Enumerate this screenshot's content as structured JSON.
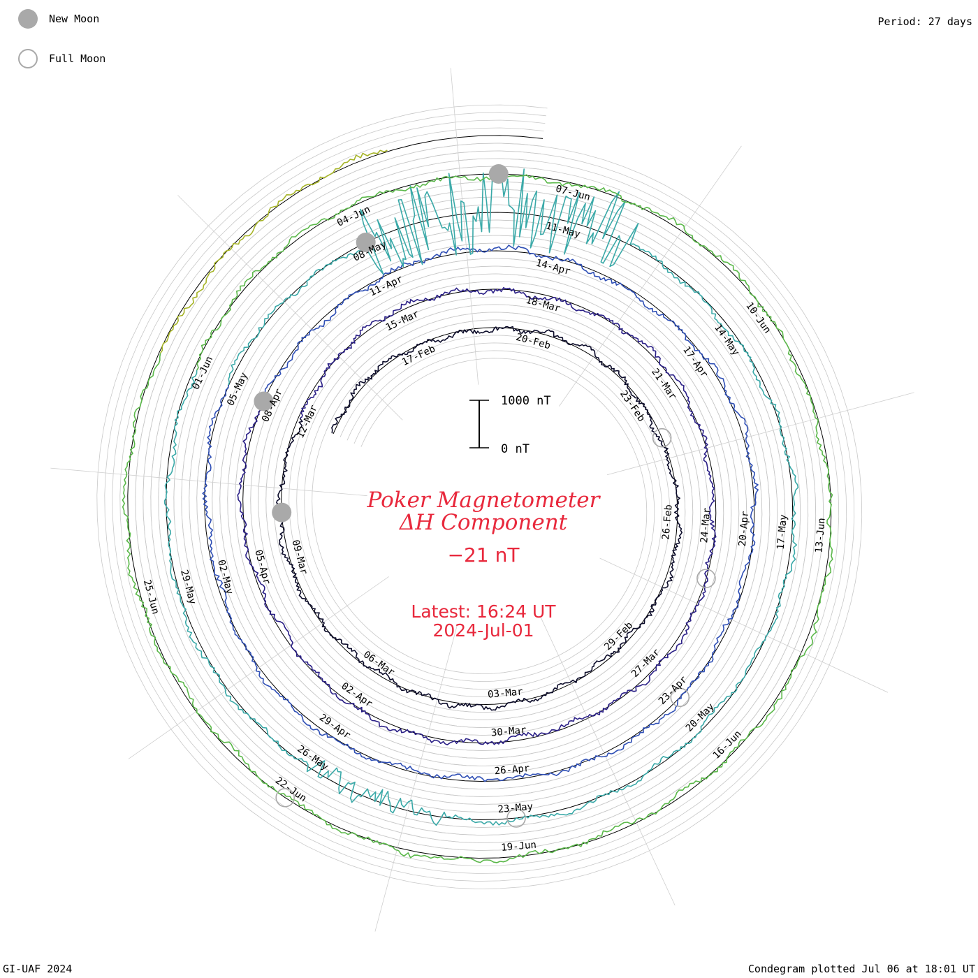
{
  "legend": {
    "new_moon_label": "New Moon",
    "full_moon_label": "Full Moon",
    "new_moon_color": "#a9a9a9",
    "full_moon_color": "#a9a9a9"
  },
  "header": {
    "period": "Period: 27 days"
  },
  "footer": {
    "credit": "GI-UAF 2024",
    "plotted": "Condegram plotted Jul 06 at 18:01 UT"
  },
  "center": {
    "title_line1": "Poker Magnetometer",
    "title_line2": "ΔH Component",
    "value": "−21 nT",
    "latest": "Latest: 16:24 UT",
    "date": "2024-Jul-01"
  },
  "scale_bar": {
    "top_label": "1000 nT",
    "bottom_label": "0 nT"
  },
  "chart_data": {
    "type": "line",
    "subtype": "condegram (spiral, polar)",
    "station": "Poker",
    "component": "ΔH",
    "period_days": 27,
    "scale_nT": [
      0,
      1000
    ],
    "start_date": "2024-02-14",
    "end_date": "2024-07-01",
    "series": [
      {
        "lap": 1,
        "color": "#0c0c2a"
      },
      {
        "lap": 2,
        "color": "#2a1f86"
      },
      {
        "lap": 3,
        "color": "#2f4fb5"
      },
      {
        "lap": 4,
        "color": "#3aa9a8"
      },
      {
        "lap": 5,
        "color": "#5bb84a"
      },
      {
        "lap": 6,
        "color": "#a6b428"
      },
      {
        "lap": 7,
        "color": "#b87e18"
      },
      {
        "lap": 8,
        "color": "#c23814"
      }
    ],
    "date_labels": [
      "17-Feb",
      "20-Feb",
      "23-Feb",
      "26-Feb",
      "29-Feb",
      "03-Mar",
      "06-Mar",
      "09-Mar",
      "12-Mar",
      "15-Mar",
      "18-Mar",
      "21-Mar",
      "24-Mar",
      "27-Mar",
      "30-Mar",
      "02-Apr",
      "05-Apr",
      "08-Apr",
      "11-Apr",
      "14-Apr",
      "17-Apr",
      "20-Apr",
      "23-Apr",
      "26-Apr",
      "29-Apr",
      "02-May",
      "05-May",
      "08-May",
      "11-May",
      "14-May",
      "17-May",
      "20-May",
      "23-May",
      "26-May",
      "29-May",
      "01-Jun",
      "04-Jun",
      "07-Jun",
      "10-Jun",
      "13-Jun",
      "16-Jun",
      "19-Jun",
      "22-Jun",
      "25-Jun"
    ],
    "new_moons": [
      "2024-03-10",
      "2024-04-08",
      "2024-05-08",
      "2024-06-06"
    ],
    "full_moons": [
      "2024-02-24",
      "2024-03-25",
      "2024-04-23",
      "2024-05-23",
      "2024-06-22"
    ],
    "grid": true,
    "legend_position": "top-left",
    "latest_value_nT": -21
  }
}
